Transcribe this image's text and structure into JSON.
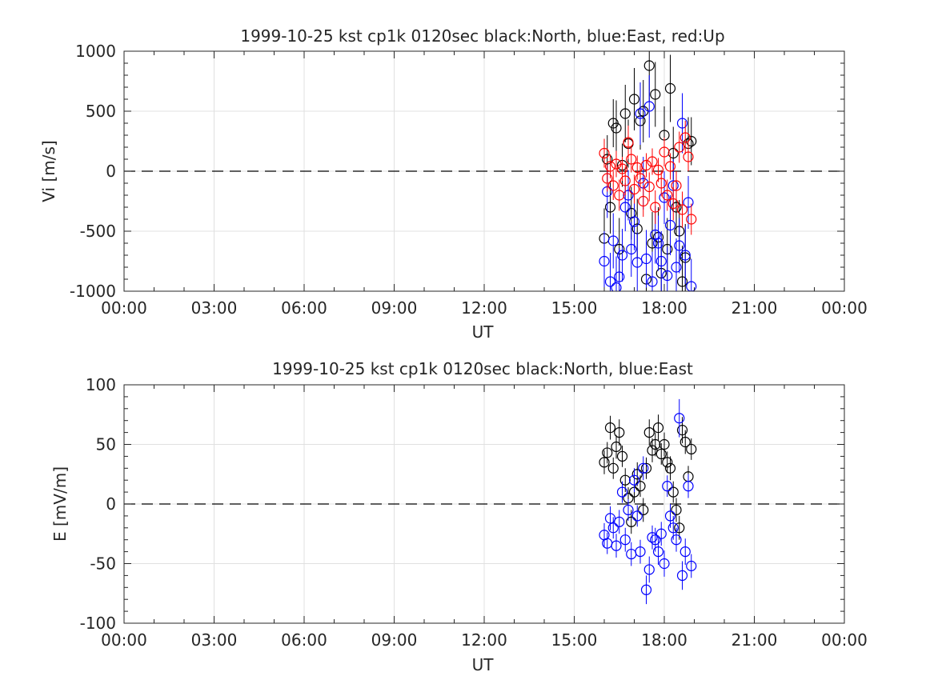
{
  "chart_data": [
    {
      "type": "scatter",
      "title": "1999-10-25 kst cp1k 0120sec black:North, blue:East, red:Up",
      "xlabel": "UT",
      "ylabel": "Vi [m/s]",
      "xlim": [
        0,
        24
      ],
      "ylim": [
        -1000,
        1000
      ],
      "xticks": [
        0,
        3,
        6,
        9,
        12,
        15,
        18,
        21,
        24
      ],
      "xtick_labels": [
        "00:00",
        "03:00",
        "06:00",
        "09:00",
        "12:00",
        "15:00",
        "18:00",
        "21:00",
        "00:00"
      ],
      "yticks": [
        -1000,
        -500,
        0,
        500,
        1000
      ],
      "ytick_labels": [
        "-1000",
        "-500",
        "0",
        "500",
        "1000"
      ],
      "grid": true,
      "zero_line": "dashed",
      "series": [
        {
          "color": "#000000",
          "x": [
            16.0,
            16.1,
            16.2,
            16.3,
            16.4,
            16.5,
            16.6,
            16.7,
            16.8,
            16.9,
            17.0,
            17.1,
            17.2,
            17.3,
            17.4,
            17.5,
            17.6,
            17.7,
            17.8,
            17.9,
            18.0,
            18.1,
            18.2,
            18.3,
            18.4,
            18.5,
            18.6,
            18.7,
            18.8,
            18.9
          ],
          "y": [
            -560,
            100,
            -300,
            400,
            360,
            -650,
            50,
            480,
            230,
            -350,
            600,
            -480,
            420,
            500,
            -900,
            880,
            -600,
            640,
            -550,
            -850,
            300,
            -650,
            690,
            150,
            -300,
            -500,
            -920,
            -720,
            230,
            250
          ],
          "err": [
            250,
            200,
            220,
            200,
            230,
            260,
            180,
            240,
            200,
            220,
            260,
            250,
            240,
            260,
            280,
            300,
            260,
            270,
            250,
            280,
            240,
            260,
            280,
            220,
            240,
            260,
            300,
            280,
            220,
            200
          ]
        },
        {
          "color": "#0000ff",
          "x": [
            16.0,
            16.1,
            16.2,
            16.3,
            16.4,
            16.5,
            16.6,
            16.7,
            16.8,
            16.9,
            17.0,
            17.1,
            17.2,
            17.3,
            17.4,
            17.5,
            17.6,
            17.7,
            17.8,
            17.9,
            18.0,
            18.1,
            18.2,
            18.3,
            18.4,
            18.5,
            18.6,
            18.7,
            18.8,
            18.9
          ],
          "y": [
            -750,
            -170,
            -920,
            -580,
            -970,
            -880,
            -700,
            -300,
            -200,
            -650,
            -420,
            -760,
            480,
            -100,
            -730,
            540,
            -920,
            -530,
            -600,
            -750,
            -220,
            -870,
            -450,
            -120,
            -800,
            -620,
            400,
            -700,
            -260,
            -960
          ],
          "err": [
            250,
            220,
            240,
            230,
            260,
            240,
            220,
            200,
            210,
            230,
            240,
            250,
            260,
            220,
            240,
            260,
            250,
            240,
            230,
            250,
            220,
            240,
            250,
            220,
            240,
            230,
            250,
            240,
            220,
            230
          ]
        },
        {
          "color": "#ff0000",
          "x": [
            16.0,
            16.1,
            16.2,
            16.3,
            16.4,
            16.5,
            16.6,
            16.7,
            16.8,
            16.9,
            17.0,
            17.1,
            17.2,
            17.3,
            17.4,
            17.5,
            17.6,
            17.7,
            17.8,
            17.9,
            18.0,
            18.1,
            18.2,
            18.3,
            18.4,
            18.5,
            18.6,
            18.7,
            18.8,
            18.9
          ],
          "y": [
            150,
            -60,
            40,
            -120,
            60,
            -200,
            20,
            -80,
            240,
            100,
            -150,
            30,
            -60,
            -250,
            50,
            -130,
            80,
            -300,
            10,
            -100,
            160,
            -200,
            40,
            -270,
            -120,
            200,
            -320,
            280,
            120,
            -400
          ],
          "err": [
            120,
            110,
            100,
            120,
            110,
            130,
            100,
            120,
            140,
            110,
            120,
            100,
            110,
            130,
            100,
            120,
            110,
            140,
            100,
            110,
            120,
            130,
            110,
            140,
            120,
            130,
            150,
            140,
            120,
            130
          ]
        }
      ]
    },
    {
      "type": "scatter",
      "title": "1999-10-25 kst cp1k 0120sec black:North, blue:East",
      "xlabel": "UT",
      "ylabel": "E [mV/m]",
      "xlim": [
        0,
        24
      ],
      "ylim": [
        -100,
        100
      ],
      "xticks": [
        0,
        3,
        6,
        9,
        12,
        15,
        18,
        21,
        24
      ],
      "xtick_labels": [
        "00:00",
        "03:00",
        "06:00",
        "09:00",
        "12:00",
        "15:00",
        "18:00",
        "21:00",
        "00:00"
      ],
      "yticks": [
        -100,
        -50,
        0,
        50,
        100
      ],
      "ytick_labels": [
        "-100",
        "-50",
        "0",
        "50",
        "100"
      ],
      "grid": true,
      "zero_line": "dashed",
      "series": [
        {
          "color": "#000000",
          "x": [
            16.0,
            16.1,
            16.2,
            16.3,
            16.4,
            16.5,
            16.6,
            16.7,
            16.8,
            16.9,
            17.0,
            17.1,
            17.2,
            17.3,
            17.4,
            17.5,
            17.6,
            17.7,
            17.8,
            17.9,
            18.0,
            18.1,
            18.2,
            18.3,
            18.4,
            18.5,
            18.6,
            18.7,
            18.8,
            18.9
          ],
          "y": [
            35,
            43,
            64,
            30,
            48,
            60,
            40,
            20,
            5,
            -15,
            10,
            25,
            15,
            -5,
            30,
            60,
            45,
            50,
            64,
            42,
            50,
            35,
            30,
            10,
            -5,
            -20,
            62,
            52,
            23,
            46
          ],
          "err": [
            10,
            9,
            10,
            9,
            10,
            11,
            9,
            10,
            9,
            10,
            9,
            10,
            9,
            10,
            9,
            11,
            10,
            10,
            11,
            9,
            10,
            9,
            10,
            9,
            10,
            10,
            11,
            10,
            9,
            9
          ]
        },
        {
          "color": "#0000ff",
          "x": [
            16.0,
            16.1,
            16.2,
            16.3,
            16.4,
            16.5,
            16.6,
            16.7,
            16.8,
            16.9,
            17.0,
            17.1,
            17.2,
            17.3,
            17.4,
            17.5,
            17.6,
            17.7,
            17.8,
            17.9,
            18.0,
            18.1,
            18.2,
            18.3,
            18.4,
            18.5,
            18.6,
            18.7,
            18.8,
            18.9
          ],
          "y": [
            -26,
            -33,
            -12,
            -20,
            -35,
            -15,
            10,
            -30,
            -5,
            -42,
            20,
            -10,
            -40,
            30,
            -72,
            -55,
            -28,
            -30,
            -40,
            -25,
            -50,
            15,
            -10,
            -20,
            -30,
            72,
            -60,
            -40,
            15,
            -52
          ],
          "err": [
            10,
            9,
            10,
            9,
            10,
            10,
            9,
            10,
            9,
            10,
            10,
            9,
            10,
            10,
            12,
            11,
            10,
            10,
            11,
            10,
            11,
            9,
            10,
            10,
            10,
            16,
            12,
            11,
            10,
            10
          ]
        }
      ]
    }
  ]
}
